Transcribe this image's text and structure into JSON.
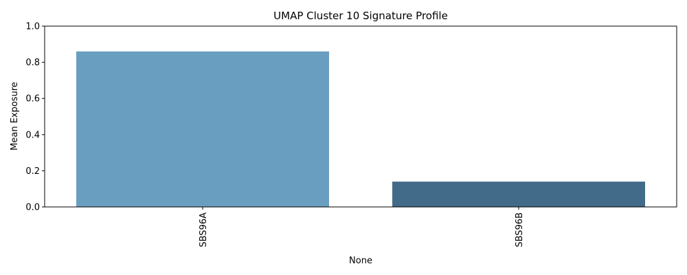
{
  "chart_data": {
    "type": "bar",
    "title": "UMAP Cluster 10 Signature Profile",
    "xlabel": "None",
    "ylabel": "Mean Exposure",
    "categories": [
      "SBS96A",
      "SBS96B"
    ],
    "values": [
      0.86,
      0.14
    ],
    "colors": [
      "#6a9ec0",
      "#426a89"
    ],
    "ylim": [
      0,
      1.0
    ],
    "yticks": [
      "0.0",
      "0.2",
      "0.4",
      "0.6",
      "0.8",
      "1.0"
    ],
    "grid": false,
    "x_tick_rotation": "vertical"
  }
}
